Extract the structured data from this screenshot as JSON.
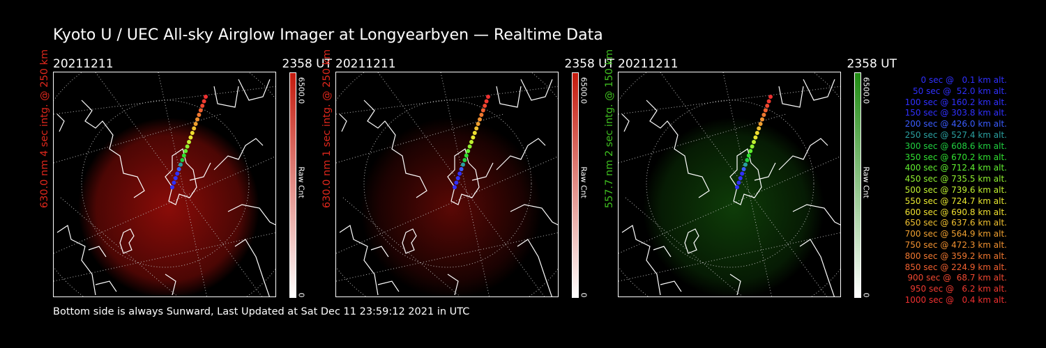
{
  "title": "Kyoto U / UEC All-sky Airglow Imager at Longyearbyen — Realtime Data",
  "footer": "Bottom side is always Sunward, Last Updated at Sat Dec 11 23:59:12 2021 in UTC",
  "panels": [
    {
      "date": "20211211",
      "time": "2358 UT",
      "ylabel": "630.0 nm 4 sec intg. @ 250 km",
      "ylabel_color": "#e0271c",
      "colorbar_max": "6500.0",
      "colorbar_label": "Raw Cnt",
      "colorbar_min": "0",
      "colorbar_top_color": "#c41a0d",
      "glow_color": "#8a0c08",
      "glow_strength": 0.55
    },
    {
      "date": "20211211",
      "time": "2358 UT",
      "ylabel": "630.0 nm 1 sec intg. @ 250 km",
      "ylabel_color": "#e0271c",
      "colorbar_max": "6500.0",
      "colorbar_label": "Raw Cnt",
      "colorbar_min": "0",
      "colorbar_top_color": "#c41a0d",
      "glow_color": "#5a0805",
      "glow_strength": 0.3
    },
    {
      "date": "20211211",
      "time": "2358 UT",
      "ylabel": "557.7 nm 2 sec intg. @ 150 km",
      "ylabel_color": "#3fbf1f",
      "colorbar_max": "6500.0",
      "colorbar_label": "Raw Cnt",
      "colorbar_min": "0",
      "colorbar_top_color": "#1f8a12",
      "glow_color": "#0e3c08",
      "glow_strength": 0.45
    }
  ],
  "legend": [
    {
      "text": "0 sec @   0.1 km alt.",
      "color": "#3030ff"
    },
    {
      "text": "50 sec @  52.0 km alt.",
      "color": "#3030ff"
    },
    {
      "text": "100 sec @ 160.2 km alt.",
      "color": "#3030ff"
    },
    {
      "text": "150 sec @ 303.8 km alt.",
      "color": "#3030ff"
    },
    {
      "text": "200 sec @ 426.0 km alt.",
      "color": "#3a5cff"
    },
    {
      "text": "250 sec @ 527.4 km alt.",
      "color": "#2aa0a0"
    },
    {
      "text": "300 sec @ 608.6 km alt.",
      "color": "#20d040"
    },
    {
      "text": "350 sec @ 670.2 km alt.",
      "color": "#30e030"
    },
    {
      "text": "400 sec @ 712.4 km alt.",
      "color": "#60f030"
    },
    {
      "text": "450 sec @ 735.5 km alt.",
      "color": "#90f030"
    },
    {
      "text": "500 sec @ 739.6 km alt.",
      "color": "#c0f030"
    },
    {
      "text": "550 sec @ 724.7 km alt.",
      "color": "#e8e830"
    },
    {
      "text": "600 sec @ 690.8 km alt.",
      "color": "#f0e030"
    },
    {
      "text": "650 sec @ 637.6 km alt.",
      "color": "#f0c030"
    },
    {
      "text": "700 sec @ 564.9 km alt.",
      "color": "#f0a030"
    },
    {
      "text": "750 sec @ 472.3 km alt.",
      "color": "#f09030"
    },
    {
      "text": "800 sec @ 359.2 km alt.",
      "color": "#f07830"
    },
    {
      "text": "850 sec @ 224.9 km alt.",
      "color": "#f06030"
    },
    {
      "text": "900 sec @  68.7 km alt.",
      "color": "#f04830"
    },
    {
      "text": "950 sec @   6.2 km alt.",
      "color": "#f03a30"
    },
    {
      "text": "1000 sec @   0.4 km alt.",
      "color": "#f03030"
    }
  ]
}
